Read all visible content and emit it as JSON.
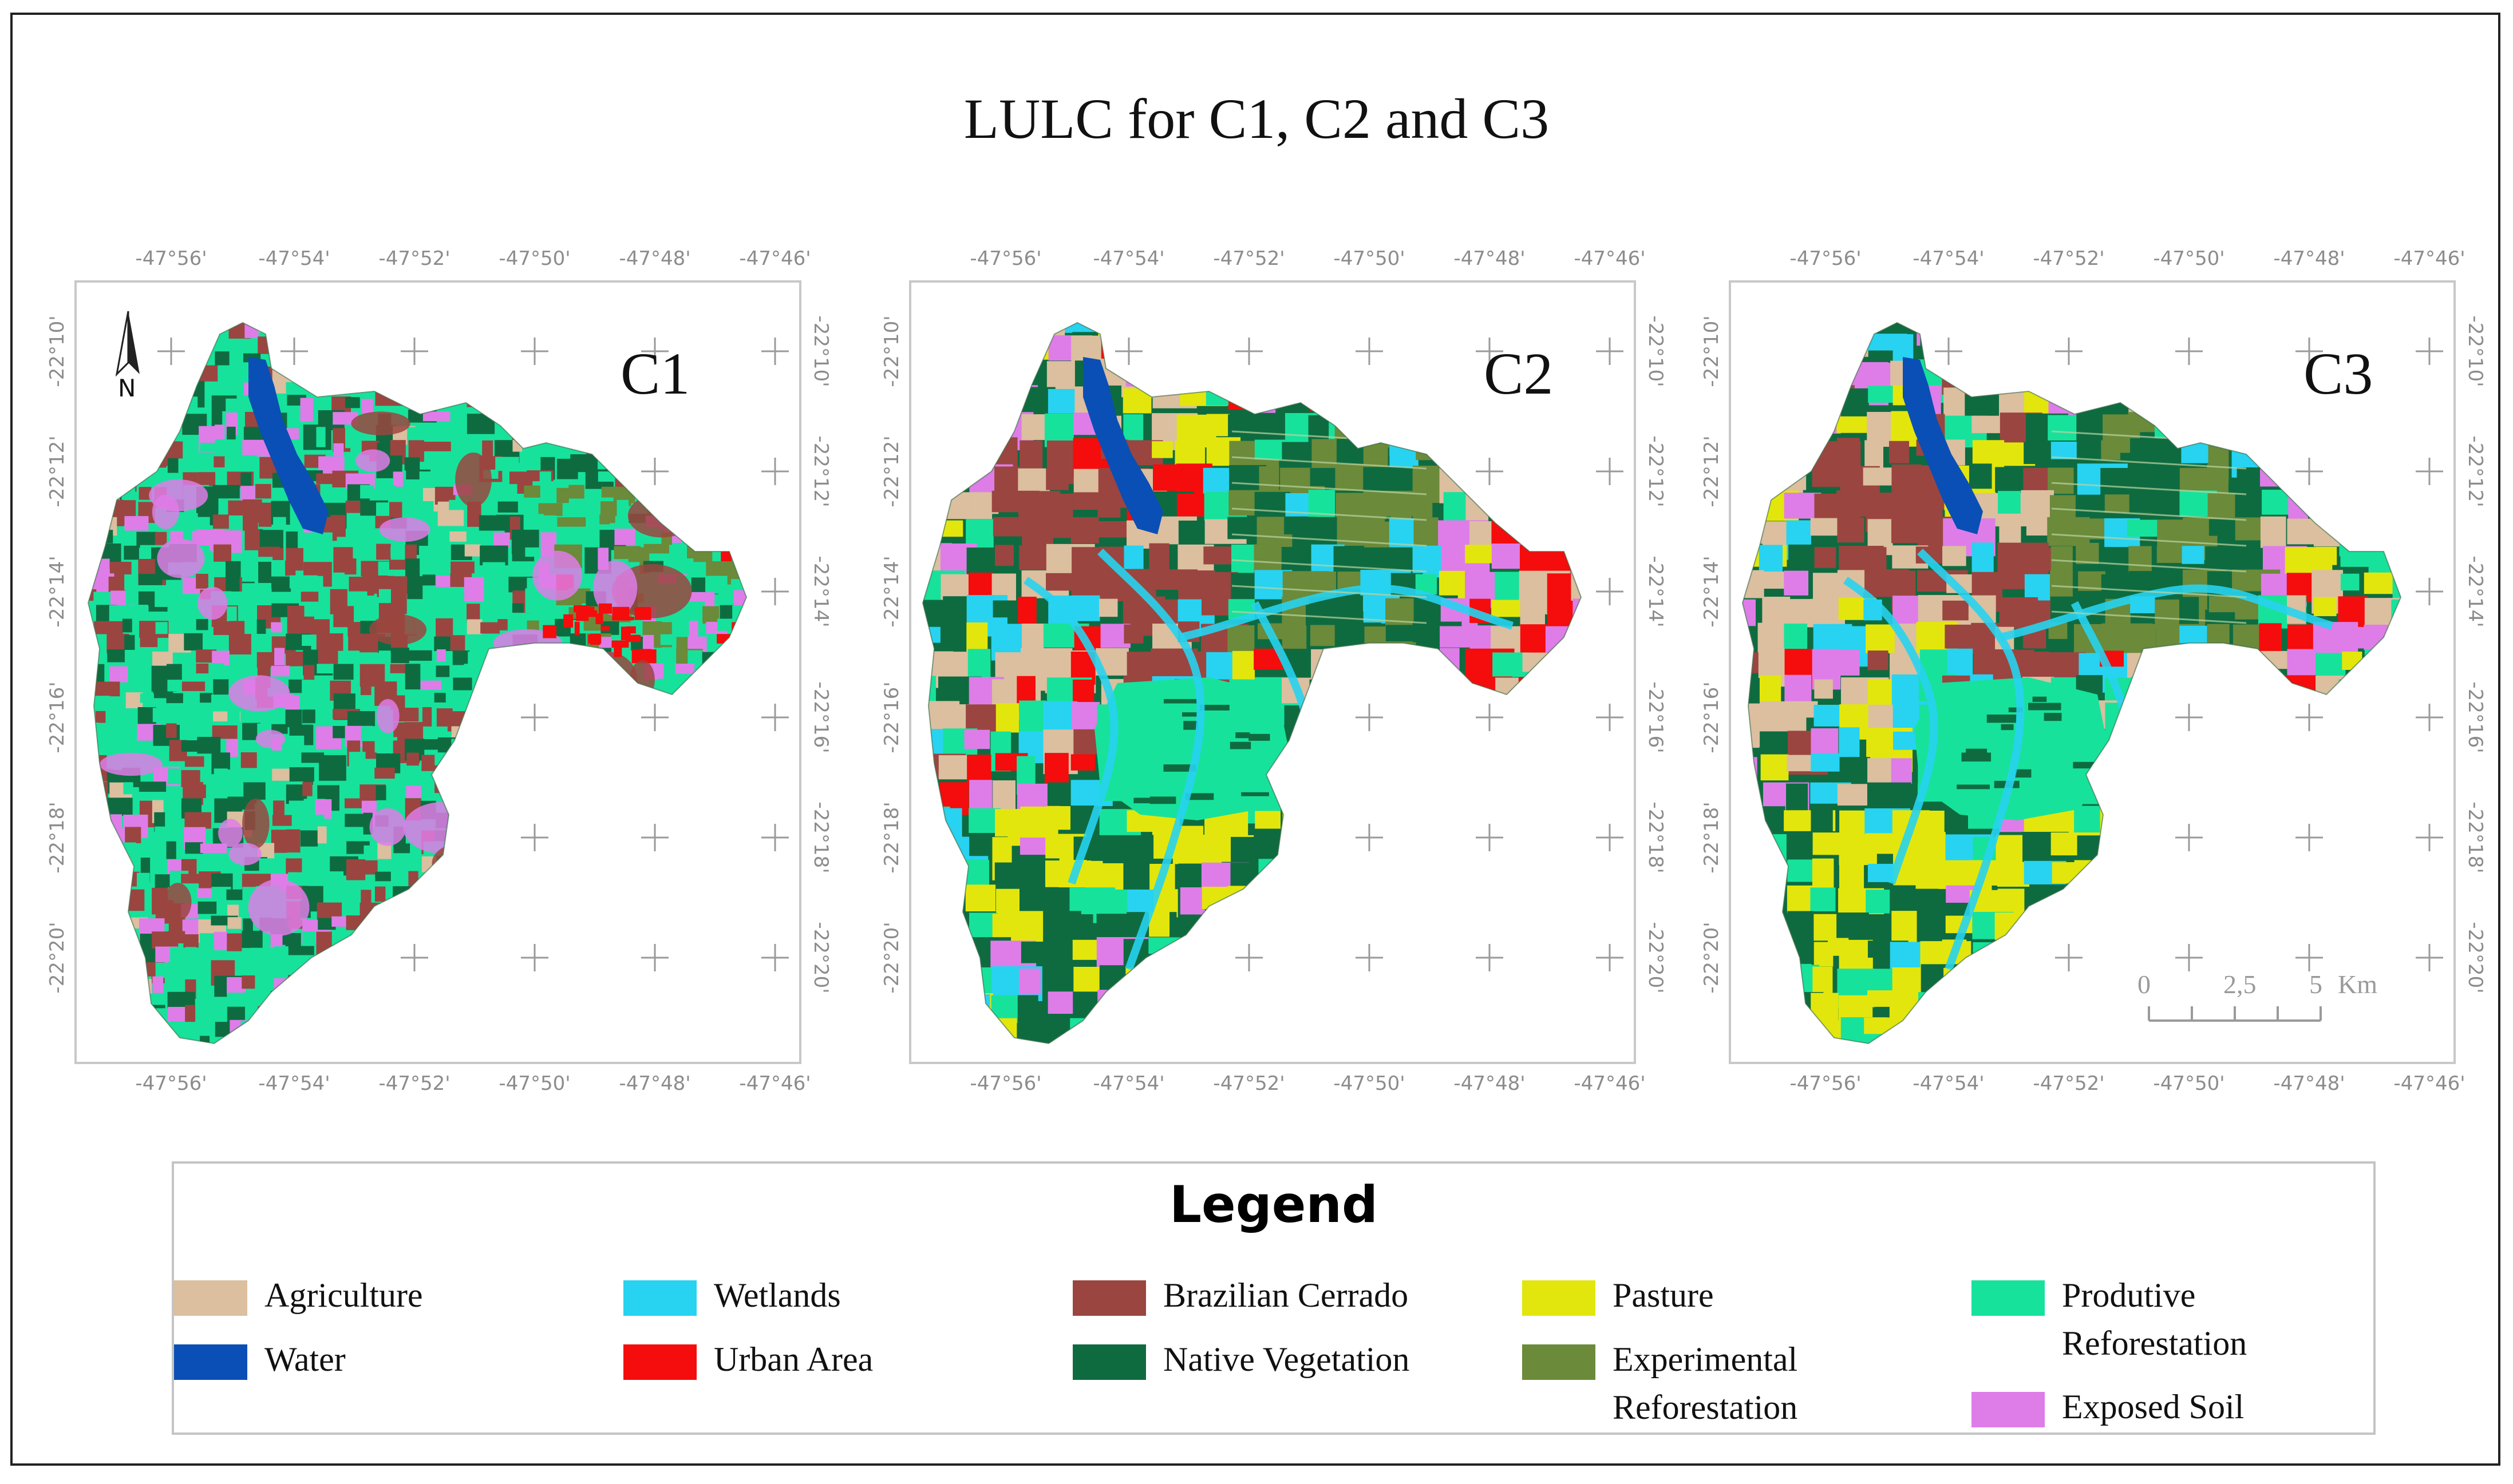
{
  "title": "LULC for C1, C2 and C3",
  "longitude_ticks": [
    "-47°56'",
    "-47°54'",
    "-47°52'",
    "-47°50'",
    "-47°48'",
    "-47°46'"
  ],
  "latitude_ticks": [
    "-22°10'",
    "-22°12'",
    "-22°14'",
    "-22°16'",
    "-22°18'",
    "-22°20'"
  ],
  "panels": [
    {
      "label": "C1",
      "north_arrow": "N",
      "dominant_classes": [
        "Produtive Reforestation",
        "Brazilian Cerrado",
        "Native Vegetation"
      ]
    },
    {
      "label": "C2",
      "dominant_classes": [
        "Native Vegetation",
        "Produtive Reforestation",
        "Pasture",
        "Urban Area"
      ]
    },
    {
      "label": "C3",
      "dominant_classes": [
        "Native Vegetation",
        "Produtive Reforestation",
        "Pasture",
        "Exposed Soil"
      ],
      "scale_bar": {
        "labels": [
          "0",
          "2,5",
          "5"
        ],
        "unit": "Km"
      }
    }
  ],
  "legend": {
    "title": "Legend",
    "items": [
      {
        "label": "Agriculture",
        "color": "#dbbf9f"
      },
      {
        "label": "Water",
        "color": "#0a4fb5"
      },
      {
        "label": "Wetlands",
        "color": "#27d3f0"
      },
      {
        "label": "Urban Area",
        "color": "#f50c0c"
      },
      {
        "label": "Brazilian Cerrado",
        "color": "#9b4540"
      },
      {
        "label": "Native Vegetation",
        "color": "#0e6b40"
      },
      {
        "label": "Pasture",
        "color": "#e3e60c"
      },
      {
        "label": "Experimental Reforestation",
        "color": "#6b8a3a"
      },
      {
        "label": "Produtive Reforestation",
        "color": "#17e29c"
      },
      {
        "label": "Exposed Soil",
        "color": "#de7de8"
      }
    ]
  },
  "icons": {
    "north_arrow": "north-arrow-icon",
    "graticule": "graticule-cross-icon"
  }
}
